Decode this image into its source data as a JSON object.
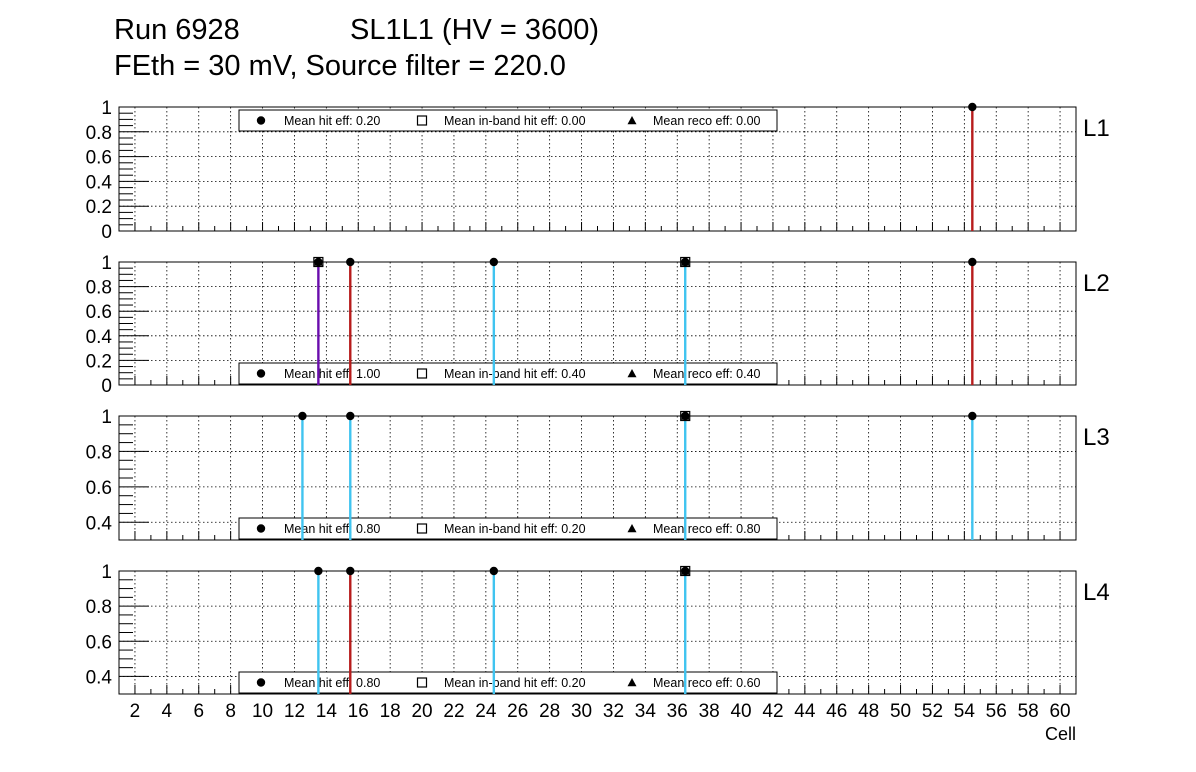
{
  "title": {
    "line1_left": "Run 6928",
    "line1_right": "SL1L1 (HV = 3600)",
    "line2": "FEth = 30 mV, Source filter = 220.0"
  },
  "colors": {
    "dead": "#b71c1c",
    "ok": "#40c4f0",
    "inband": "#6a0dad",
    "axis": "#000000",
    "grid": "#000000"
  },
  "chart_data": {
    "type": "scatter",
    "x_axis": {
      "label": "Cell",
      "range": [
        1,
        61
      ],
      "ticks": [
        2,
        4,
        6,
        8,
        10,
        12,
        14,
        16,
        18,
        20,
        22,
        24,
        26,
        28,
        30,
        32,
        34,
        36,
        38,
        40,
        42,
        44,
        46,
        48,
        50,
        52,
        54,
        56,
        58,
        60
      ]
    },
    "grid": true,
    "marker_legend": {
      "hit": "filled-circle",
      "inband": "open-square",
      "reco": "filled-triangle"
    },
    "panels": [
      {
        "name": "L1",
        "ylim": [
          0,
          1
        ],
        "yticks": [
          "0",
          "0.2",
          "0.4",
          "0.6",
          "0.8",
          "1"
        ],
        "ytick_values": [
          0,
          0.2,
          0.4,
          0.6,
          0.8,
          1
        ],
        "legend_position": "top-left",
        "legend": {
          "hit": "Mean hit  eff: 0.20",
          "inband": "Mean in-band hit eff: 0.00",
          "reco": "Mean reco eff: 0.00"
        },
        "points": [
          {
            "cell": 54.5,
            "value": 1.0,
            "line": "dead",
            "markers": [
              "hit"
            ]
          }
        ]
      },
      {
        "name": "L2",
        "ylim": [
          0,
          1
        ],
        "yticks": [
          "0",
          "0.2",
          "0.4",
          "0.6",
          "0.8",
          "1"
        ],
        "ytick_values": [
          0,
          0.2,
          0.4,
          0.6,
          0.8,
          1
        ],
        "legend_position": "bottom-left",
        "legend": {
          "hit": "Mean hit  eff: 1.00",
          "inband": "Mean in-band hit eff: 0.40",
          "reco": "Mean reco eff: 0.40"
        },
        "points": [
          {
            "cell": 13.5,
            "value": 1.0,
            "line": "inband",
            "markers": [
              "hit",
              "inband",
              "reco"
            ]
          },
          {
            "cell": 15.5,
            "value": 1.0,
            "line": "dead",
            "markers": [
              "hit"
            ]
          },
          {
            "cell": 24.5,
            "value": 1.0,
            "line": "ok",
            "markers": [
              "hit"
            ]
          },
          {
            "cell": 36.5,
            "value": 1.0,
            "line": "ok",
            "markers": [
              "hit",
              "inband",
              "reco"
            ]
          },
          {
            "cell": 54.5,
            "value": 1.0,
            "line": "dead",
            "markers": [
              "hit"
            ]
          }
        ]
      },
      {
        "name": "L3",
        "ylim": [
          0.3,
          1
        ],
        "yticks": [
          "0.4",
          "0.6",
          "0.8",
          "1"
        ],
        "ytick_values": [
          0.4,
          0.6,
          0.8,
          1
        ],
        "legend_position": "bottom-left",
        "legend": {
          "hit": "Mean hit  eff: 0.80",
          "inband": "Mean in-band hit eff: 0.20",
          "reco": "Mean reco eff: 0.80"
        },
        "points": [
          {
            "cell": 12.5,
            "value": 1.0,
            "line": "ok",
            "markers": [
              "hit"
            ]
          },
          {
            "cell": 15.5,
            "value": 1.0,
            "line": "ok",
            "markers": [
              "hit"
            ]
          },
          {
            "cell": 36.5,
            "value": 1.0,
            "line": "ok",
            "markers": [
              "hit",
              "inband",
              "reco"
            ]
          },
          {
            "cell": 54.5,
            "value": 1.0,
            "line": "ok",
            "markers": [
              "hit"
            ]
          }
        ]
      },
      {
        "name": "L4",
        "ylim": [
          0.3,
          1
        ],
        "yticks": [
          "0.4",
          "0.6",
          "0.8",
          "1"
        ],
        "ytick_values": [
          0.4,
          0.6,
          0.8,
          1
        ],
        "legend_position": "bottom-left",
        "legend": {
          "hit": "Mean hit  eff: 0.80",
          "inband": "Mean in-band hit eff: 0.20",
          "reco": "Mean reco eff: 0.60"
        },
        "points": [
          {
            "cell": 13.5,
            "value": 1.0,
            "line": "ok",
            "markers": [
              "hit"
            ]
          },
          {
            "cell": 15.5,
            "value": 1.0,
            "line": "dead",
            "markers": [
              "hit"
            ]
          },
          {
            "cell": 24.5,
            "value": 1.0,
            "line": "ok",
            "markers": [
              "hit"
            ]
          },
          {
            "cell": 36.5,
            "value": 1.0,
            "line": "ok",
            "markers": [
              "hit",
              "inband",
              "reco"
            ]
          }
        ]
      }
    ]
  }
}
